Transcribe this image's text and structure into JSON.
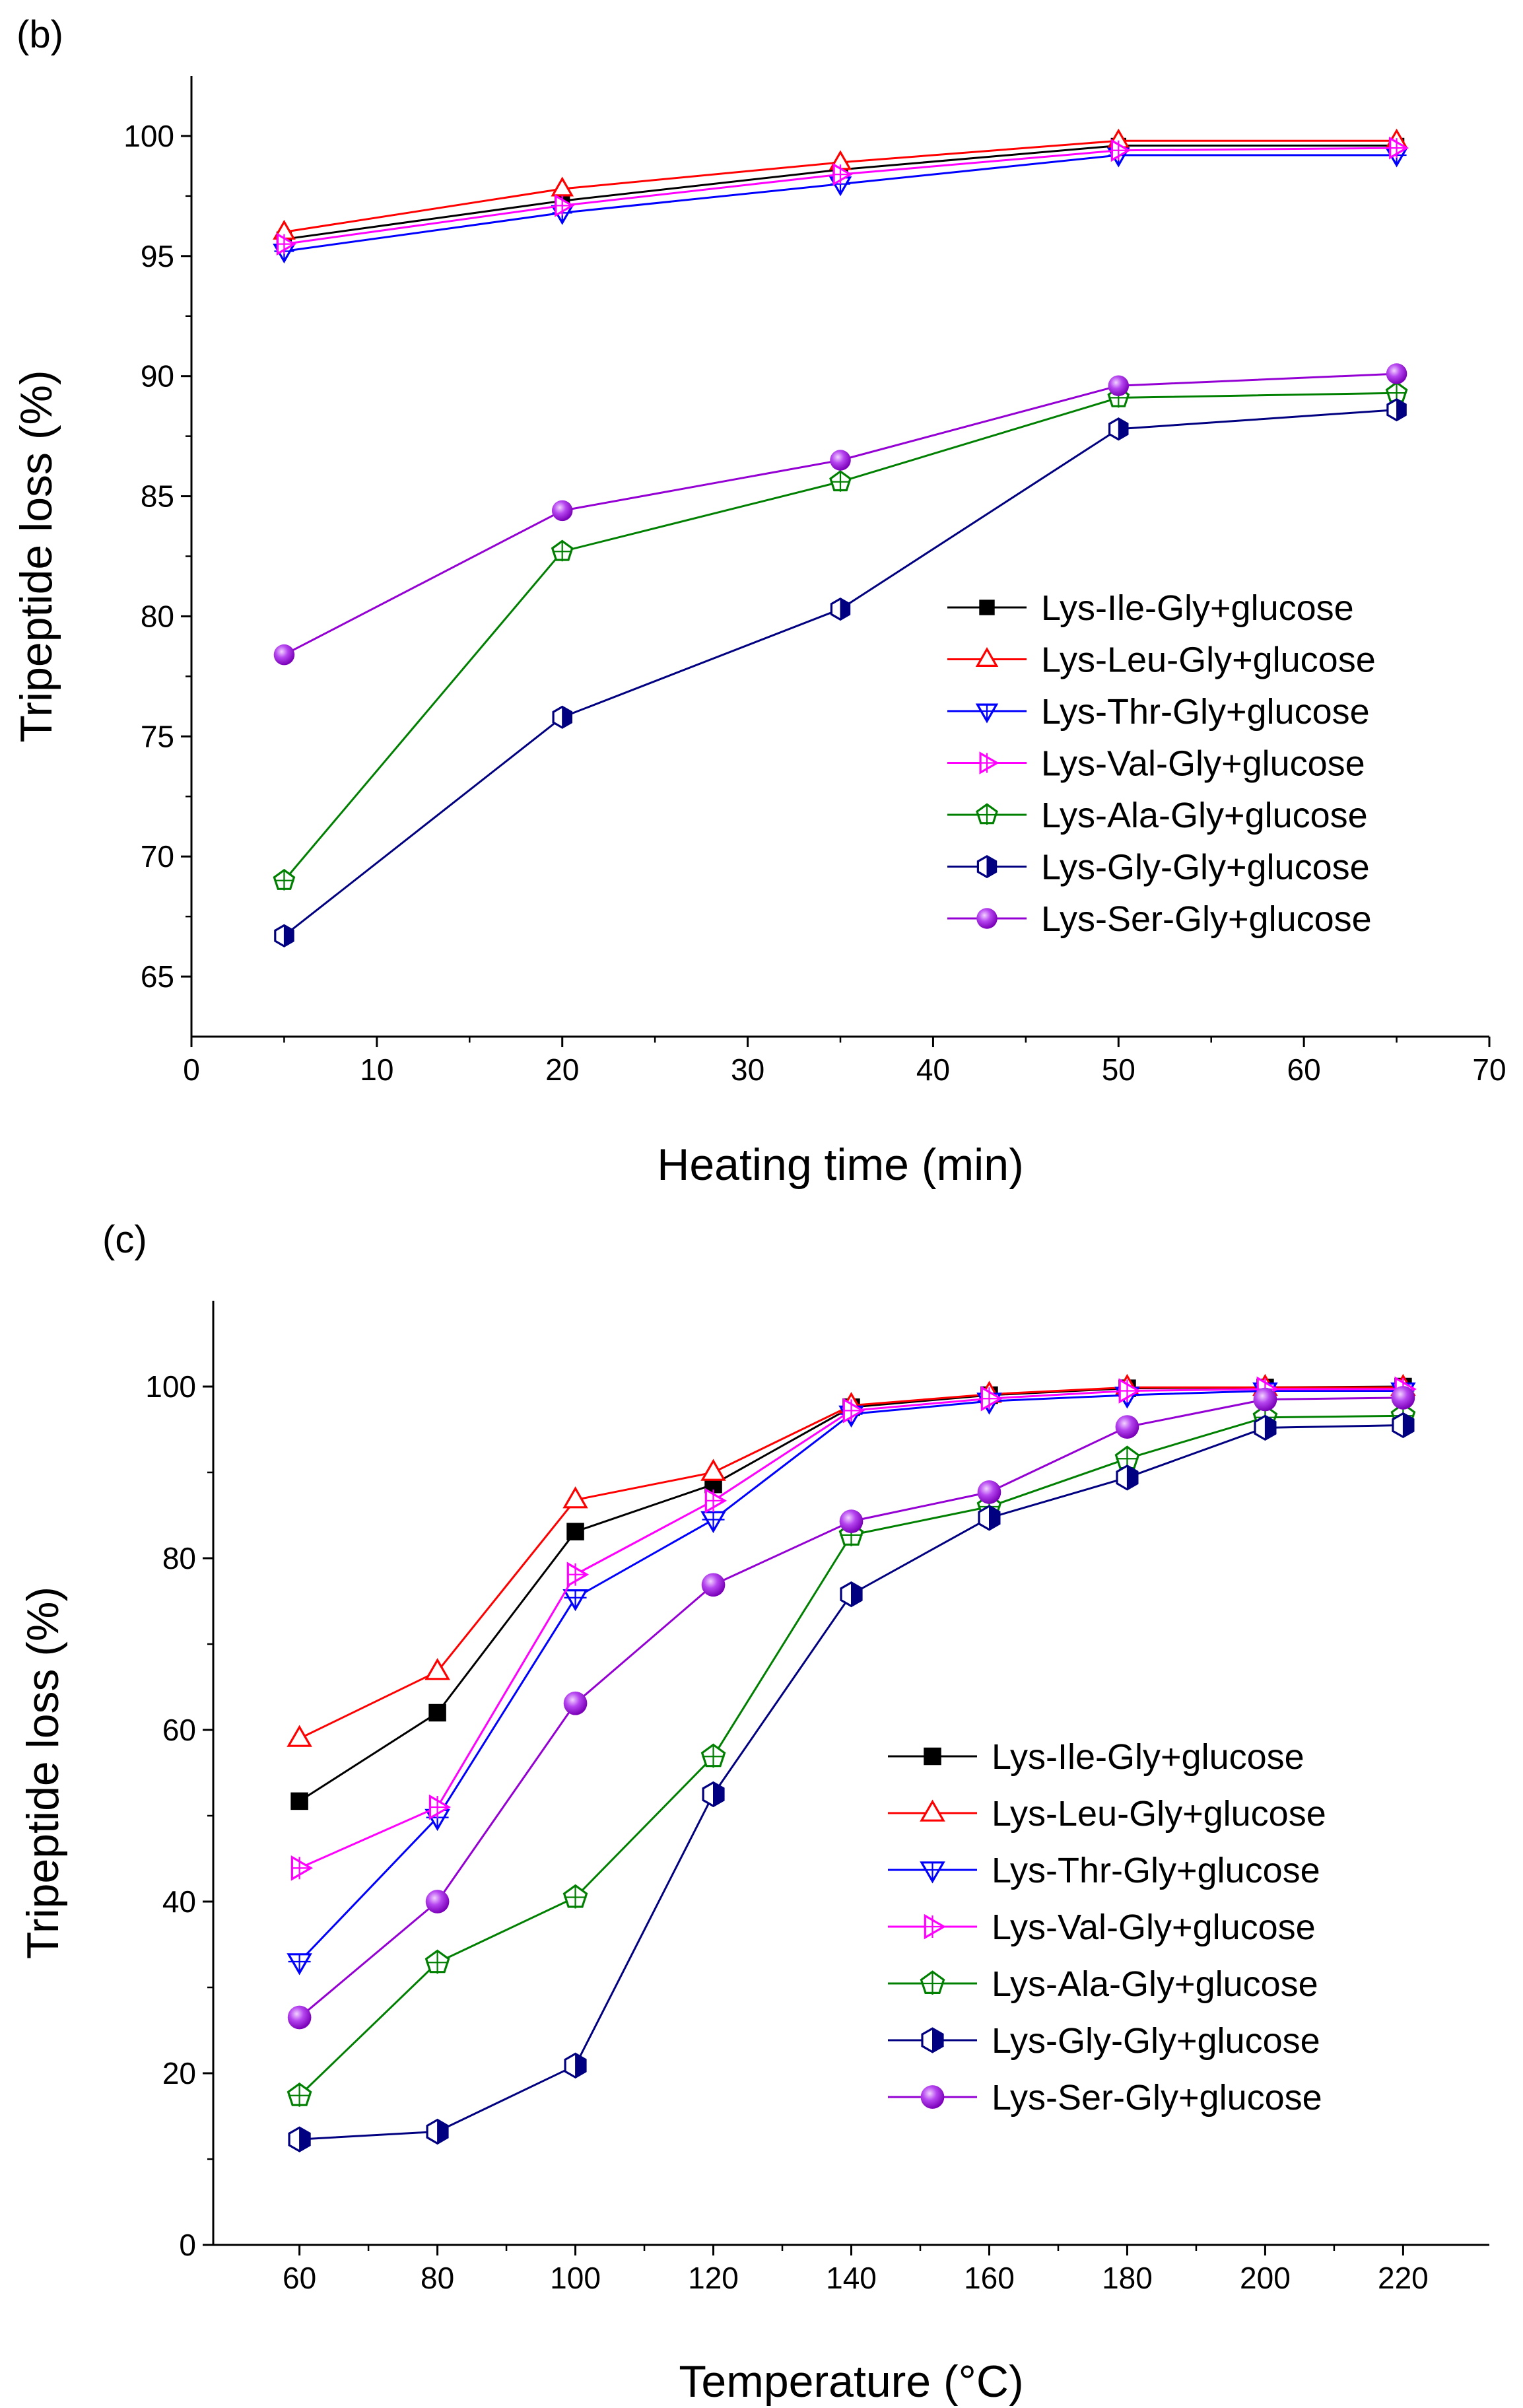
{
  "chart_data": [
    {
      "type": "line",
      "panel_label": "(b)",
      "xlabel": "Heating time (min)",
      "ylabel": "Tripeptide loss (%)",
      "xlim": [
        0,
        70
      ],
      "ylim": [
        62.5,
        102.5
      ],
      "x_ticks": [
        "0",
        "10",
        "20",
        "30",
        "40",
        "50",
        "60",
        "70"
      ],
      "y_ticks": [
        "65",
        "70",
        "75",
        "80",
        "85",
        "90",
        "95",
        "100"
      ],
      "legend_position": "center-right",
      "x": [
        5,
        20,
        35,
        50,
        65
      ],
      "series": [
        {
          "name": "Lys-Ile-Gly+glucose",
          "color": "#000000",
          "marker": "square",
          "values": [
            95.7,
            97.3,
            98.6,
            99.6,
            99.6
          ]
        },
        {
          "name": "Lys-Leu-Gly+glucose",
          "color": "#ff0000",
          "marker": "triangle-up",
          "values": [
            96.0,
            97.8,
            98.9,
            99.8,
            99.8
          ]
        },
        {
          "name": "Lys-Thr-Gly+glucose",
          "color": "#0000ff",
          "marker": "triangle-down",
          "values": [
            95.2,
            96.8,
            98.0,
            99.2,
            99.2
          ]
        },
        {
          "name": "Lys-Val-Gly+glucose",
          "color": "#ff00ff",
          "marker": "triangle-right",
          "values": [
            95.5,
            97.1,
            98.4,
            99.4,
            99.5
          ]
        },
        {
          "name": "Lys-Ala-Gly+glucose",
          "color": "#008000",
          "marker": "pentagon",
          "values": [
            69.0,
            82.7,
            85.6,
            89.1,
            89.3
          ]
        },
        {
          "name": "Lys-Gly-Gly+glucose",
          "color": "#000080",
          "marker": "hexagon-half",
          "values": [
            66.7,
            75.8,
            80.3,
            87.8,
            88.6
          ]
        },
        {
          "name": "Lys-Ser-Gly+glucose",
          "color": "#9400d3",
          "marker": "sphere",
          "values": [
            78.4,
            84.4,
            86.5,
            89.6,
            90.1
          ]
        }
      ]
    },
    {
      "type": "line",
      "panel_label": "(c)",
      "xlabel": "Temperature (°C)",
      "ylabel": "Tripeptide loss (%)",
      "xlim": [
        47.5,
        232.5
      ],
      "ylim": [
        0,
        110
      ],
      "x_ticks": [
        "60",
        "80",
        "100",
        "120",
        "140",
        "160",
        "180",
        "200",
        "220"
      ],
      "y_ticks": [
        "0",
        "20",
        "40",
        "60",
        "80",
        "100"
      ],
      "legend_position": "bottom-right",
      "x": [
        60,
        80,
        100,
        120,
        140,
        160,
        180,
        200,
        220
      ],
      "series": [
        {
          "name": "Lys-Ile-Gly+glucose",
          "color": "#000000",
          "marker": "square",
          "values": [
            51.7,
            62.0,
            83.1,
            88.6,
            97.6,
            99.0,
            99.8,
            99.9,
            100.0
          ]
        },
        {
          "name": "Lys-Leu-Gly+glucose",
          "color": "#ff0000",
          "marker": "triangle-up",
          "values": [
            59.0,
            66.8,
            86.8,
            90.0,
            97.8,
            99.1,
            99.9,
            99.9,
            99.9
          ]
        },
        {
          "name": "Lys-Thr-Gly+glucose",
          "color": "#0000ff",
          "marker": "triangle-down",
          "values": [
            33.0,
            49.8,
            75.4,
            84.5,
            96.8,
            98.3,
            99.0,
            99.5,
            99.5
          ]
        },
        {
          "name": "Lys-Val-Gly+glucose",
          "color": "#ff00ff",
          "marker": "triangle-right",
          "values": [
            43.9,
            51.0,
            78.1,
            86.7,
            97.2,
            98.6,
            99.5,
            99.7,
            99.7
          ]
        },
        {
          "name": "Lys-Ala-Gly+glucose",
          "color": "#008000",
          "marker": "pentagon",
          "values": [
            17.4,
            32.9,
            40.5,
            56.9,
            82.7,
            86.0,
            91.6,
            96.4,
            96.6
          ]
        },
        {
          "name": "Lys-Gly-Gly+glucose",
          "color": "#000080",
          "marker": "hexagon-half",
          "values": [
            12.3,
            13.2,
            20.9,
            52.5,
            75.8,
            84.7,
            89.4,
            95.2,
            95.5
          ]
        },
        {
          "name": "Lys-Ser-Gly+glucose",
          "color": "#9400d3",
          "marker": "sphere",
          "values": [
            26.5,
            40.0,
            63.1,
            76.9,
            84.3,
            87.7,
            95.3,
            98.5,
            98.7
          ]
        }
      ]
    }
  ]
}
